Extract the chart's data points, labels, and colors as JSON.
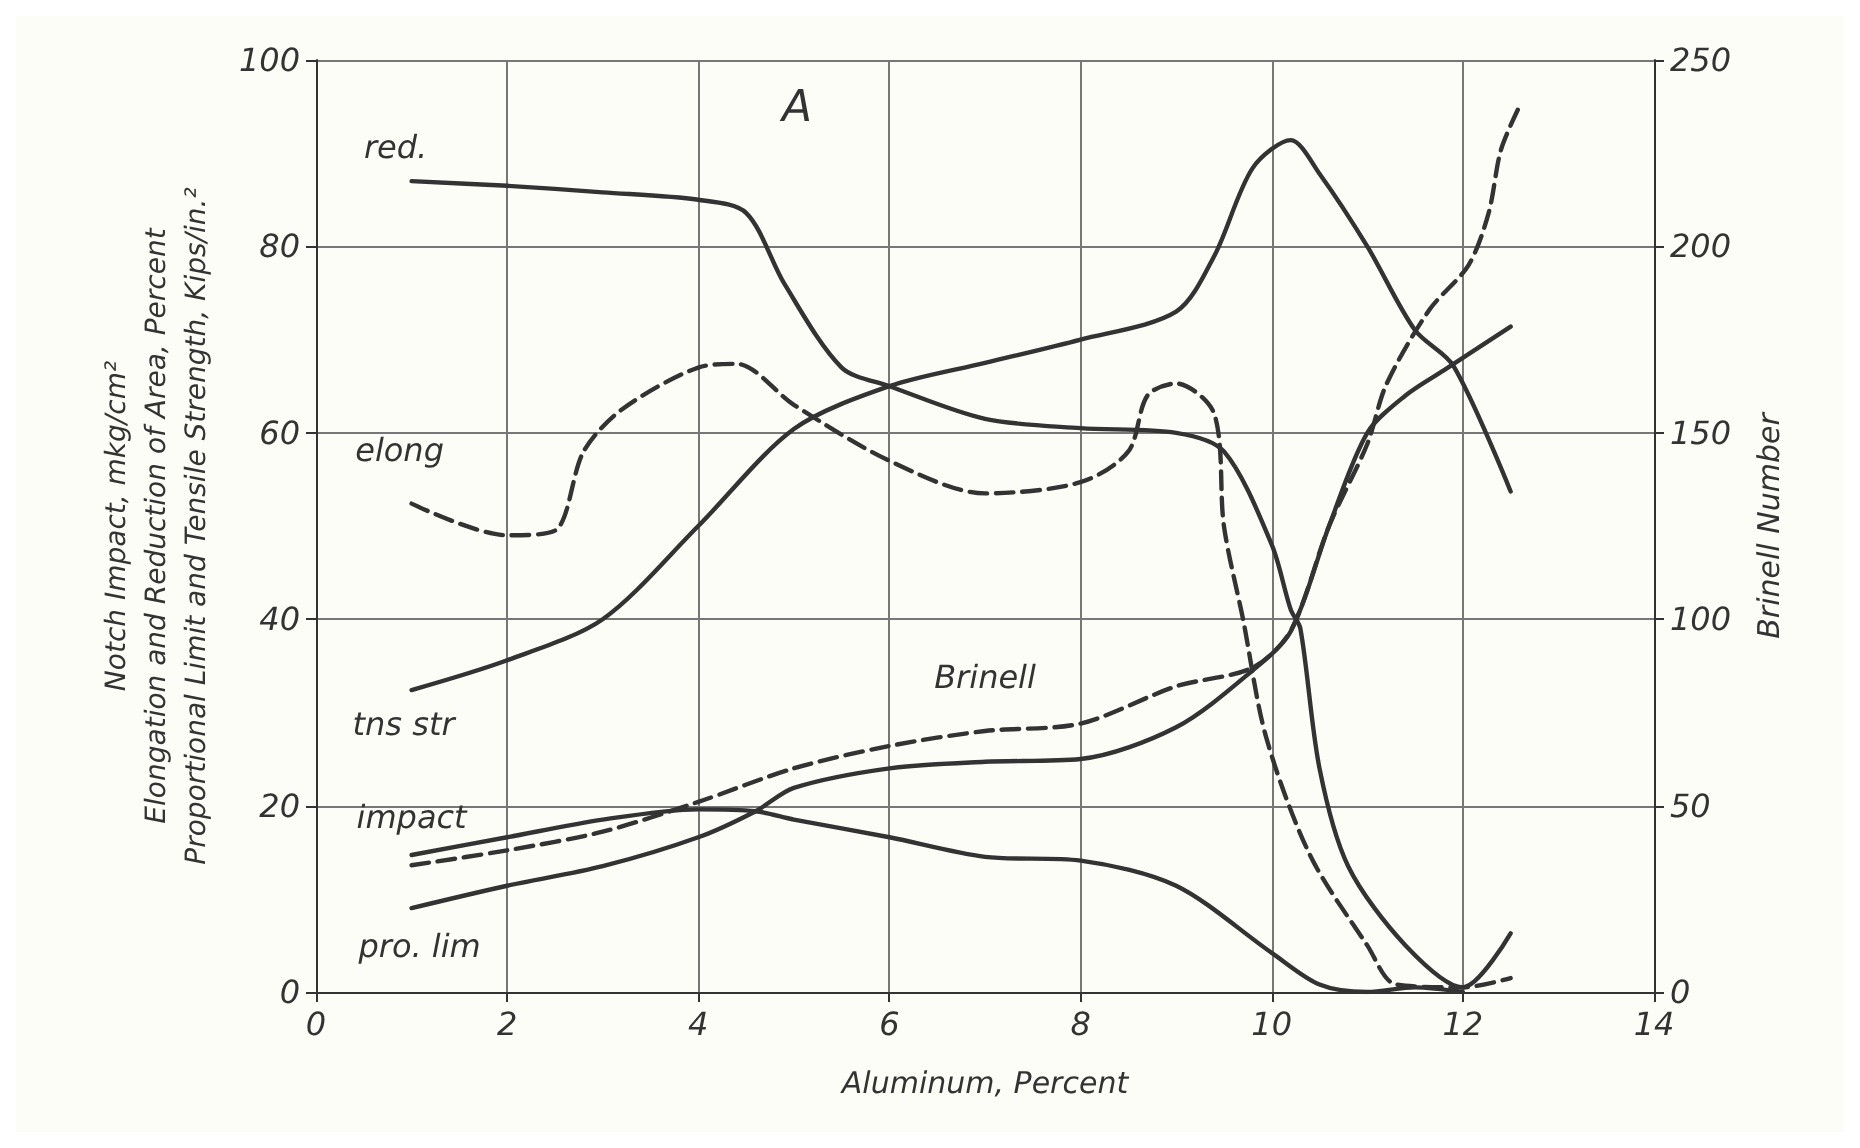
{
  "chart_data": {
    "type": "line",
    "title": "A",
    "xlabel": "Aluminum, Percent",
    "ylabel": "Notch Impact, mkg/cm²\nElongation and Reduction of Area, Percent\nProportional Limit and Tensile Strength, Kips/in.²",
    "y2label": "Brinell Number",
    "series": [
      {
        "name": "red.",
        "color": "#333333",
        "line_style": "solid",
        "x": [
          1,
          2,
          3,
          4,
          4.5,
          4.9,
          5.5,
          6,
          7,
          8,
          9,
          9.5,
          10,
          10.2,
          10.3,
          10.5,
          10.8,
          11.4,
          12,
          12.5
        ],
        "values": [
          87,
          86.5,
          85.8,
          85,
          83.6,
          76,
          67,
          65,
          61.5,
          60.5,
          60,
          58,
          48,
          41,
          39,
          24,
          13.5,
          5,
          0.5,
          6.3
        ]
      },
      {
        "name": "elong",
        "color": "#333333",
        "line_style": "dashed",
        "x": [
          1,
          2,
          2.5,
          2.8,
          3.2,
          4,
          4.4,
          5,
          6,
          7,
          8,
          8.5,
          8.7,
          9,
          9.4,
          9.5,
          9.7,
          9.94,
          10.4,
          11,
          11.3,
          12,
          12.5
        ],
        "values": [
          52.4,
          49,
          49.5,
          58,
          62.5,
          67,
          67.4,
          63,
          57,
          53.5,
          54.7,
          58,
          64,
          65.3,
          62,
          50,
          40,
          27.4,
          14.7,
          5,
          0.8,
          0.5,
          1.5
        ]
      },
      {
        "name": "tns str",
        "color": "#333333",
        "line_style": "solid",
        "x": [
          1,
          2,
          3,
          4,
          5,
          6,
          7,
          8,
          9,
          9.4,
          9.8,
          10.2,
          10.5,
          11,
          11.5,
          11.9,
          12.5
        ],
        "values": [
          32.4,
          35.6,
          40,
          50,
          60.4,
          65,
          67.5,
          70,
          73,
          79,
          88.4,
          91.4,
          87.8,
          80,
          71,
          67.2,
          53.7
        ]
      },
      {
        "name": "impact",
        "color": "#333333",
        "line_style": "solid",
        "x": [
          1,
          2,
          3,
          4,
          4.6,
          5,
          6,
          7,
          8,
          9,
          10,
          10.5,
          11,
          11.5,
          12
        ],
        "values": [
          14.7,
          16.6,
          18.5,
          19.6,
          19.4,
          18.5,
          16.6,
          14.5,
          14.1,
          11.4,
          4.2,
          0.8,
          0,
          0.5,
          0
        ]
      },
      {
        "name": "pro. lim",
        "color": "#333333",
        "line_style": "solid",
        "x": [
          1,
          2,
          3,
          4,
          4.6,
          5,
          6,
          7,
          8,
          9,
          9.8,
          10.2,
          10.6,
          11,
          11.4,
          11.8,
          12.5
        ],
        "values": [
          9,
          11.4,
          13.5,
          16.6,
          19.4,
          21.9,
          24,
          24.7,
          25,
          28.4,
          34.5,
          38.7,
          50,
          60,
          64,
          66.7,
          71.4
        ]
      },
      {
        "name": "Brinell",
        "color": "#333333",
        "line_style": "dashed",
        "axis": "y2",
        "x": [
          1,
          2,
          3,
          4,
          5,
          6,
          7,
          8,
          9,
          9.8,
          10.2,
          10.6,
          11,
          11.2,
          11.65,
          12.06,
          12.27,
          12.4,
          12.6
        ],
        "values": [
          34,
          38,
          43,
          51,
          60,
          66,
          70,
          72,
          82,
          87,
          97,
          125,
          147,
          163,
          183,
          195,
          209,
          226,
          238
        ]
      }
    ],
    "xlim": [
      0,
      14
    ],
    "xticks": [
      0,
      2,
      4,
      6,
      8,
      10,
      12,
      14
    ],
    "ylim": [
      0,
      100
    ],
    "yticks": [
      0,
      20,
      40,
      60,
      80,
      100
    ],
    "y2lim": [
      0,
      250
    ],
    "y2ticks": [
      0,
      50,
      100,
      150,
      200,
      250
    ],
    "grid": true,
    "legend": false,
    "marker": "none"
  }
}
